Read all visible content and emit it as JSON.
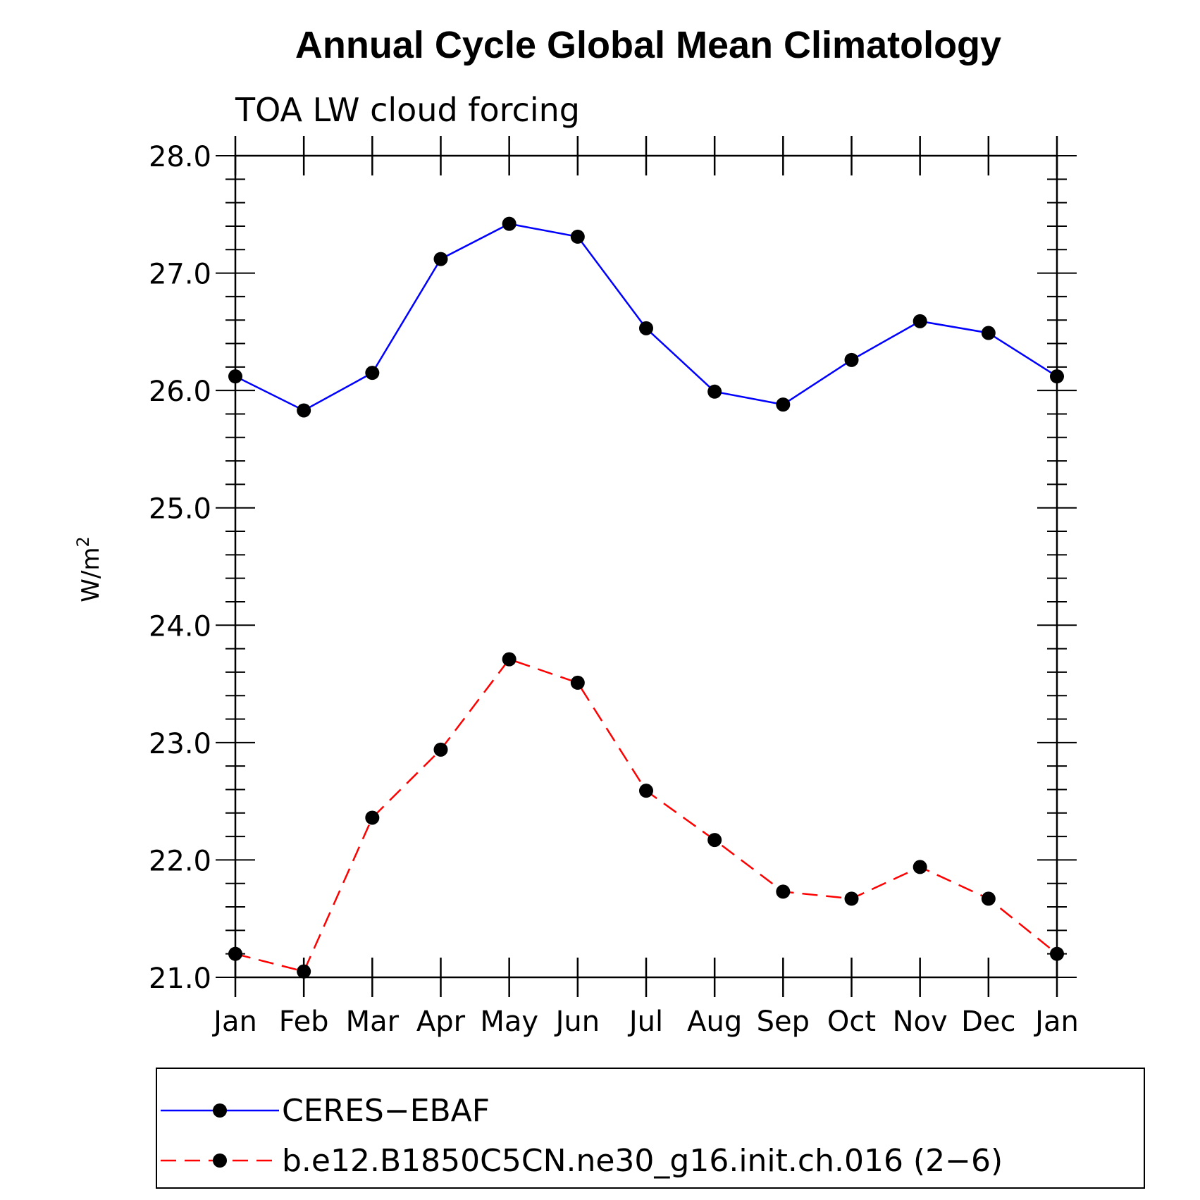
{
  "chart_data": {
    "type": "line",
    "title": "Annual Cycle Global Mean Climatology",
    "subtitle": "TOA LW cloud forcing",
    "ylabel": "W/m",
    "ylabel_superscript": "2",
    "categories": [
      "Jan",
      "Feb",
      "Mar",
      "Apr",
      "May",
      "Jun",
      "Jul",
      "Aug",
      "Sep",
      "Oct",
      "Nov",
      "Dec",
      "Jan"
    ],
    "ylim": [
      21.0,
      28.0
    ],
    "yticks": [
      "21.0",
      "22.0",
      "23.0",
      "24.0",
      "25.0",
      "26.0",
      "27.0",
      "28.0"
    ],
    "grid": false,
    "legend_position": "bottom",
    "series": [
      {
        "name": "CERES−EBAF",
        "color": "#0000ff",
        "dash": "solid",
        "marker": "circle",
        "values": [
          26.12,
          25.83,
          26.15,
          27.12,
          27.42,
          27.31,
          26.53,
          25.99,
          25.88,
          26.26,
          26.59,
          26.49,
          26.12
        ]
      },
      {
        "name": "b.e12.B1850C5CN.ne30_g16.init.ch.016 (2−6)",
        "color": "#ff0000",
        "dash": "dashed",
        "marker": "circle",
        "values": [
          21.2,
          21.05,
          22.36,
          22.94,
          23.71,
          23.51,
          22.59,
          22.17,
          21.73,
          21.67,
          21.94,
          21.67,
          21.2
        ]
      }
    ]
  }
}
